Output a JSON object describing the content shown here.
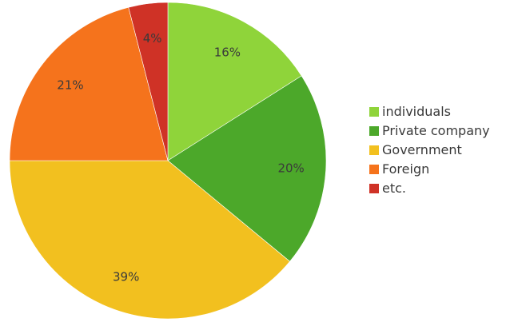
{
  "chart_data": {
    "type": "pie",
    "title": "",
    "legend_position": "right",
    "start_angle_deg": 0,
    "direction": "clockwise",
    "slices": [
      {
        "name": "individuals",
        "value": 16,
        "label": "16%",
        "color": "#8fd43a"
      },
      {
        "name": "Private company",
        "value": 20,
        "label": "20%",
        "color": "#4ca82a"
      },
      {
        "name": "Government",
        "value": 39,
        "label": "39%",
        "color": "#f2c01f"
      },
      {
        "name": "Foreign",
        "value": 21,
        "label": "21%",
        "color": "#f5731c"
      },
      {
        "name": "etc.",
        "value": 4,
        "label": "4%",
        "color": "#cf3226"
      }
    ]
  }
}
